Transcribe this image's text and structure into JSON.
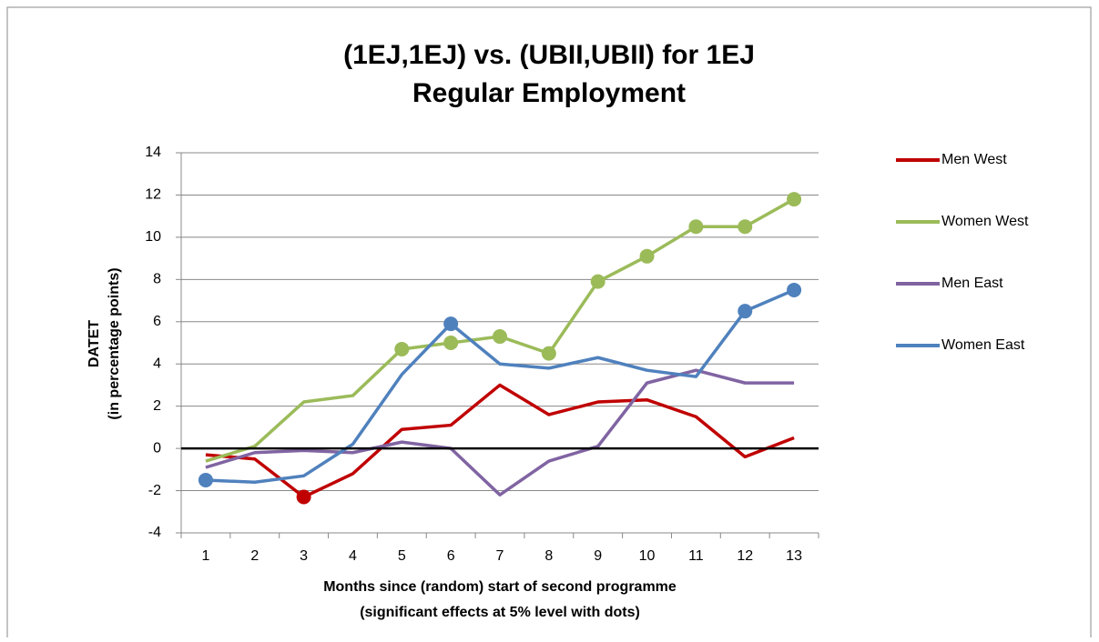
{
  "chart_data": {
    "type": "line",
    "title": [
      "(1EJ,1EJ) vs. (UBII,UBII) for 1EJ",
      "Regular Employment"
    ],
    "y_label": [
      "DATET",
      "(in percentage points)"
    ],
    "x_label": [
      "Months since (random) start of second programme",
      "(significant  effects at 5% level with dots)"
    ],
    "categories": [
      "1",
      "2",
      "3",
      "4",
      "5",
      "6",
      "7",
      "8",
      "9",
      "10",
      "11",
      "12",
      "13"
    ],
    "ylim": [
      -4,
      14
    ],
    "yticks": [
      -4,
      -2,
      0,
      2,
      4,
      6,
      8,
      10,
      12,
      14
    ],
    "grid": true,
    "zero_line": true,
    "legend": "right",
    "series": [
      {
        "name": "Men West",
        "color": "#c00000",
        "values": [
          -0.3,
          -0.5,
          -2.3,
          -1.2,
          0.9,
          1.1,
          3.0,
          1.6,
          2.2,
          2.3,
          1.5,
          -0.4,
          0.5
        ],
        "dots": [
          false,
          false,
          true,
          false,
          false,
          false,
          false,
          false,
          false,
          false,
          false,
          false,
          false
        ]
      },
      {
        "name": "Women West",
        "color": "#9bbb59",
        "values": [
          -0.6,
          0.1,
          2.2,
          2.5,
          4.7,
          5.0,
          5.3,
          4.5,
          7.9,
          9.1,
          10.5,
          10.5,
          11.8
        ],
        "dots": [
          false,
          false,
          false,
          false,
          true,
          true,
          true,
          true,
          true,
          true,
          true,
          true,
          true
        ]
      },
      {
        "name": "Men East",
        "color": "#8064a2",
        "values": [
          -0.9,
          -0.2,
          -0.1,
          -0.2,
          0.3,
          0.0,
          -2.2,
          -0.6,
          0.1,
          3.1,
          3.7,
          3.1,
          3.1
        ],
        "dots": [
          false,
          false,
          false,
          false,
          false,
          false,
          false,
          false,
          false,
          false,
          false,
          false,
          false
        ]
      },
      {
        "name": "Women East",
        "color": "#4f81bd",
        "values": [
          -1.5,
          -1.6,
          -1.3,
          0.2,
          3.5,
          5.9,
          4.0,
          3.8,
          4.3,
          3.7,
          3.4,
          6.5,
          7.5
        ],
        "dots": [
          true,
          false,
          false,
          false,
          false,
          true,
          false,
          false,
          false,
          false,
          false,
          true,
          true
        ]
      }
    ]
  }
}
